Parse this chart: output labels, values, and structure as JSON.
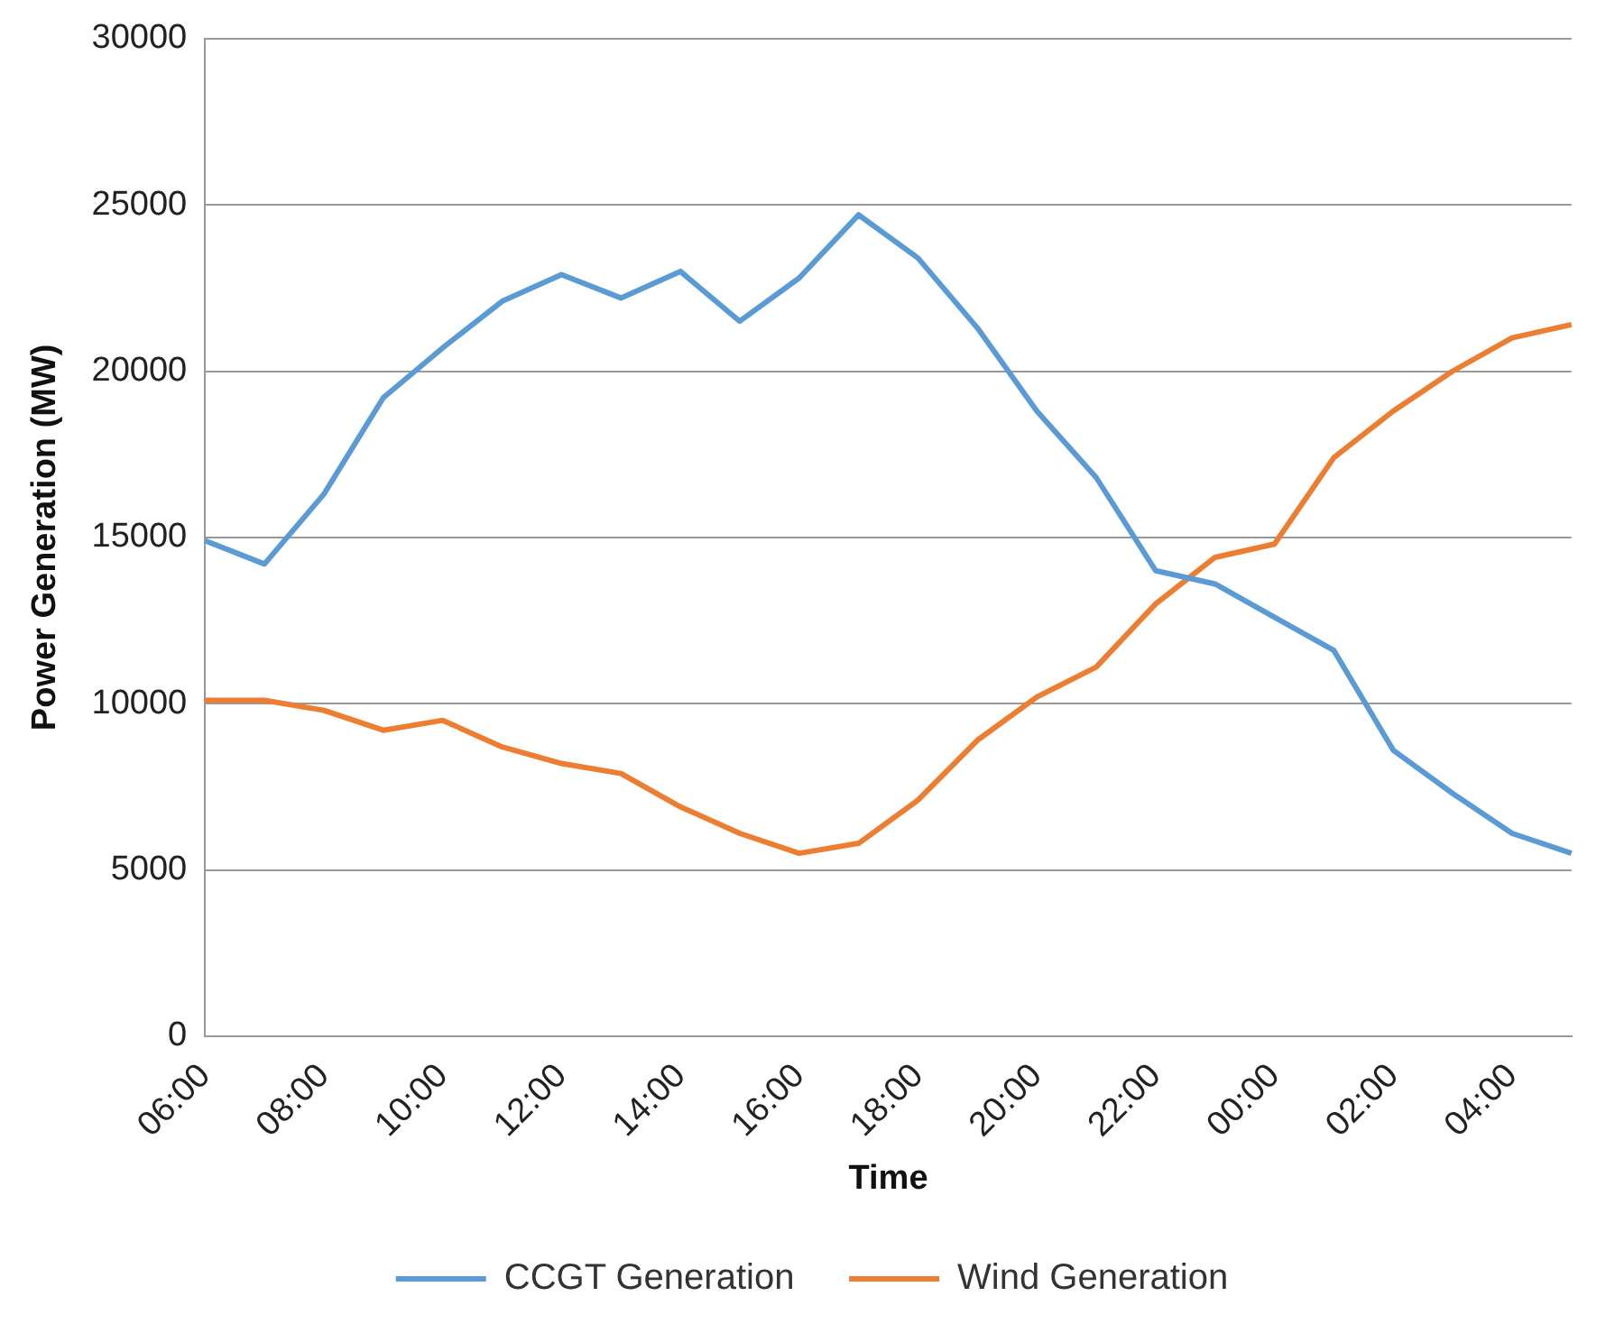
{
  "chart_data": {
    "type": "line",
    "xlabel": "Time",
    "ylabel": "Power Generation (MW)",
    "categories": [
      "06:00",
      null,
      "08:00",
      null,
      "10:00",
      null,
      "12:00",
      null,
      "14:00",
      null,
      "16:00",
      null,
      "18:00",
      null,
      "20:00",
      null,
      "22:00",
      null,
      "00:00",
      null,
      "02:00",
      null,
      "04:00",
      null
    ],
    "series": [
      {
        "name": "CCGT Generation",
        "color": "#5b9bd5",
        "values": [
          14900,
          14200,
          16300,
          19200,
          20700,
          22100,
          22900,
          22200,
          23000,
          21500,
          22800,
          24700,
          23400,
          21300,
          18800,
          16800,
          14000,
          13600,
          12600,
          11600,
          8600,
          7300,
          6100,
          5500
        ]
      },
      {
        "name": "Wind Generation",
        "color": "#ed7d31",
        "values": [
          10100,
          10100,
          9800,
          9200,
          9500,
          8700,
          8200,
          7900,
          6900,
          6100,
          5500,
          5800,
          7100,
          8900,
          10200,
          11100,
          13000,
          14400,
          14800,
          17400,
          18800,
          20000,
          21000,
          21400
        ]
      }
    ],
    "ylim": [
      0,
      30000
    ],
    "yticks": [
      0,
      5000,
      10000,
      15000,
      20000,
      25000,
      30000
    ],
    "grid": "y",
    "legend": "bottom",
    "marker": "none",
    "line_style": "solid"
  }
}
